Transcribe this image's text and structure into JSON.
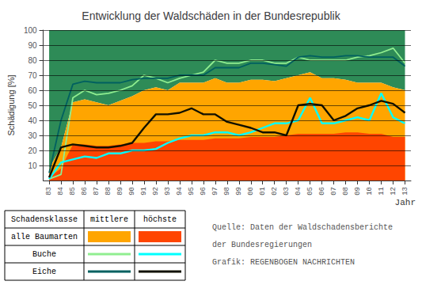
{
  "chart_data": {
    "type": "line",
    "title": "Entwicklung der Waldschäden in der Bundesrepublik",
    "ylabel": "Schädigung [%]",
    "xlabel": "Jahr",
    "categories": [
      "83",
      "84",
      "85",
      "86",
      "87",
      "88",
      "89",
      "90",
      "91",
      "92",
      "93",
      "94",
      "95",
      "96",
      "97",
      "98",
      "99",
      "00",
      "01",
      "02",
      "03",
      "04",
      "05",
      "06",
      "07",
      "08",
      "09",
      "10",
      "11",
      "12",
      "13"
    ],
    "ylim": [
      0,
      100
    ],
    "yticks": [
      10,
      20,
      30,
      40,
      50,
      60,
      70,
      80,
      90,
      100
    ],
    "grid": true,
    "color": "#2E8B57",
    "legend": "lower left",
    "legend_title": "Schadensklasse",
    "series": [
      {
        "name": "mittlere",
        "group": "alle Baumarten",
        "type": "area",
        "color": "#FFA500",
        "values": [
          8,
          22,
          52,
          54,
          52,
          50,
          53,
          56,
          60,
          62,
          60,
          65,
          65,
          65,
          68,
          65,
          65,
          67,
          67,
          66,
          68,
          70,
          72,
          68,
          68,
          67,
          65,
          65,
          65,
          62,
          60
        ]
      },
      {
        "name": "höchste",
        "group": "alle Baumarten",
        "type": "area",
        "color": "#FF4500",
        "values": [
          2,
          8,
          24,
          24,
          23,
          23,
          24,
          25,
          25,
          26,
          26,
          27,
          27,
          27,
          28,
          28,
          28,
          29,
          29,
          29,
          30,
          31,
          31,
          31,
          31,
          32,
          32,
          31,
          31,
          29,
          29
        ]
      },
      {
        "name": "mittlere",
        "group": "Buche",
        "type": "line",
        "color": "#90EE90",
        "values": [
          1,
          4,
          55,
          60,
          57,
          58,
          60,
          63,
          70,
          68,
          65,
          68,
          70,
          72,
          80,
          78,
          78,
          80,
          80,
          78,
          78,
          82,
          80,
          80,
          80,
          80,
          82,
          83,
          85,
          88,
          78
        ]
      },
      {
        "name": "höchste",
        "group": "Buche",
        "type": "line",
        "color": "#00FFFF",
        "values": [
          1,
          12,
          14,
          16,
          15,
          18,
          18,
          20,
          20,
          21,
          25,
          28,
          30,
          30,
          32,
          32,
          30,
          32,
          35,
          38,
          38,
          40,
          55,
          38,
          38,
          40,
          42,
          40,
          58,
          42,
          38
        ]
      },
      {
        "name": "mittlere",
        "group": "Eiche",
        "type": "line",
        "color": "#006060",
        "values": [
          5,
          40,
          64,
          66,
          65,
          65,
          65,
          67,
          68,
          68,
          68,
          70,
          70,
          70,
          75,
          75,
          75,
          78,
          78,
          77,
          76,
          82,
          83,
          82,
          82,
          83,
          83,
          82,
          82,
          82,
          76
        ]
      },
      {
        "name": "höchste",
        "group": "Eiche",
        "type": "line",
        "color": "#111100",
        "values": [
          2,
          22,
          24,
          23,
          22,
          22,
          23,
          25,
          35,
          44,
          44,
          45,
          48,
          44,
          44,
          39,
          37,
          35,
          32,
          32,
          30,
          50,
          51,
          50,
          40,
          43,
          48,
          50,
          53,
          51,
          45
        ]
      }
    ],
    "annotations": [
      "Quelle: Daten der Waldschadensberichte",
      "der Bundesregierungen",
      "Grafik: REGENBOGEN NACHRICHTEN"
    ]
  }
}
